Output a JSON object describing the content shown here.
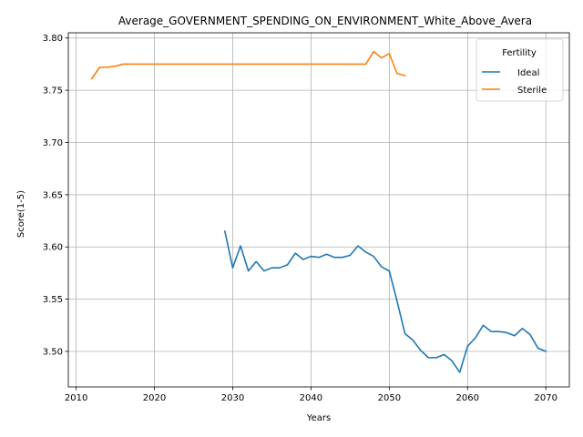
{
  "chart_data": {
    "type": "line",
    "title": "Average_GOVERNMENT_SPENDING_ON_ENVIRONMENT_White_Above_Avera",
    "xlabel": "Years",
    "ylabel": "Score(1-5)",
    "xlim": [
      2009,
      2073
    ],
    "ylim": [
      3.466,
      3.805
    ],
    "xticks": [
      2010,
      2020,
      2030,
      2040,
      2050,
      2060,
      2070
    ],
    "yticks": [
      3.5,
      3.55,
      3.6,
      3.65,
      3.7,
      3.75,
      3.8
    ],
    "ytick_labels": [
      "3.50",
      "3.55",
      "3.60",
      "3.65",
      "3.70",
      "3.75",
      "3.80"
    ],
    "grid": true,
    "legend": {
      "title": "Fertility",
      "placement": "top-right"
    },
    "series": [
      {
        "name": "Ideal",
        "color": "#1f77b4",
        "x": [
          2029,
          2030,
          2031,
          2032,
          2033,
          2034,
          2035,
          2036,
          2037,
          2038,
          2039,
          2040,
          2041,
          2042,
          2043,
          2044,
          2045,
          2046,
          2047,
          2048,
          2049,
          2050,
          2051,
          2052,
          2053,
          2054,
          2055,
          2056,
          2057,
          2058,
          2059,
          2060,
          2061,
          2062,
          2063,
          2064,
          2065,
          2066,
          2067,
          2068,
          2069,
          2070
        ],
        "y": [
          3.615,
          3.58,
          3.601,
          3.577,
          3.586,
          3.577,
          3.58,
          3.58,
          3.583,
          3.594,
          3.588,
          3.591,
          3.59,
          3.593,
          3.59,
          3.59,
          3.592,
          3.601,
          3.595,
          3.591,
          3.581,
          3.577,
          3.548,
          3.517,
          3.511,
          3.501,
          3.494,
          3.494,
          3.497,
          3.491,
          3.48,
          3.505,
          3.513,
          3.525,
          3.519,
          3.519,
          3.518,
          3.515,
          3.522,
          3.516,
          3.503,
          3.5
        ]
      },
      {
        "name": "Sterile",
        "color": "#ff7f0e",
        "x": [
          2012,
          2013,
          2014,
          2015,
          2016,
          2017,
          2018,
          2019,
          2020,
          2021,
          2022,
          2023,
          2024,
          2025,
          2026,
          2027,
          2028,
          2029,
          2030,
          2031,
          2032,
          2033,
          2034,
          2035,
          2036,
          2037,
          2038,
          2039,
          2040,
          2041,
          2042,
          2043,
          2044,
          2045,
          2046,
          2047,
          2048,
          2049,
          2050,
          2051,
          2052
        ],
        "y": [
          3.761,
          3.772,
          3.772,
          3.773,
          3.775,
          3.775,
          3.775,
          3.775,
          3.775,
          3.775,
          3.775,
          3.775,
          3.775,
          3.775,
          3.775,
          3.775,
          3.775,
          3.775,
          3.775,
          3.775,
          3.775,
          3.775,
          3.775,
          3.775,
          3.775,
          3.775,
          3.775,
          3.775,
          3.775,
          3.775,
          3.775,
          3.775,
          3.775,
          3.775,
          3.775,
          3.775,
          3.787,
          3.781,
          3.785,
          3.766,
          3.764
        ]
      }
    ]
  }
}
